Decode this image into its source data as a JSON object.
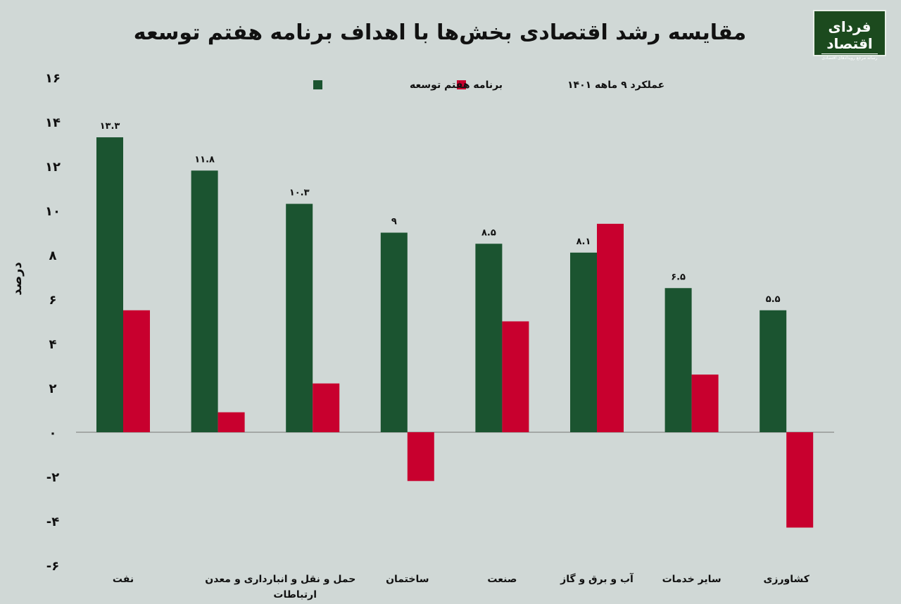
{
  "logo": {
    "name": "فردای اقتصاد",
    "tagline": "رسانه مرجع رویدادهای اقتصادی"
  },
  "colors": {
    "series1": "#1b5430",
    "series2": "#c8002e",
    "background": "#d0d8d6"
  },
  "chart_data": {
    "type": "bar",
    "title": "مقایسه رشد اقتصادی بخش‌ها با اهداف برنامه هفتم توسعه",
    "ylabel": "درصد",
    "xlabel": "",
    "ylim": [
      -6,
      16
    ],
    "yticks": [
      16,
      14,
      12,
      10,
      8,
      6,
      4,
      2,
      0,
      -2,
      -4,
      -6
    ],
    "ytick_labels": [
      "۱۶",
      "۱۴",
      "۱۲",
      "۱۰",
      "۸",
      "۶",
      "۴",
      "۲",
      "۰",
      "-۲",
      "-۴",
      "-۶"
    ],
    "legend_position": "top",
    "categories": [
      "نفت",
      "معدن",
      "حمل و نقل و انبارداری و ارتباطات",
      "ساختمان",
      "صنعت",
      "آب و برق و گاز",
      "سایر خدمات",
      "کشاورزی"
    ],
    "series": [
      {
        "name": "برنامه هفتم توسعه",
        "values": [
          13.3,
          11.8,
          10.3,
          9,
          8.5,
          8.1,
          6.5,
          5.5
        ],
        "labels": [
          "۱۳.۳",
          "۱۱.۸",
          "۱۰.۳",
          "۹",
          "۸.۵",
          "۸.۱",
          "۶.۵",
          "۵.۵"
        ]
      },
      {
        "name": "عملکرد ۹ ماهه ۱۴۰۱",
        "values": [
          5.5,
          0.9,
          2.2,
          -2.2,
          5.0,
          9.4,
          2.6,
          -4.3
        ]
      }
    ]
  }
}
